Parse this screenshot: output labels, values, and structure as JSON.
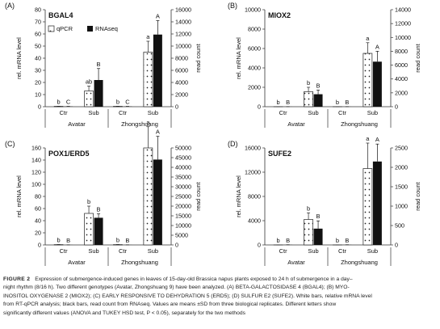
{
  "figure_label": "FIGURE 2",
  "caption_lines": [
    "Expression of submergence-induced genes in leaves of 15-day-old Brassica napus plants exposed to 24 h of submergence in a day–",
    "night rhythm (8/16 h). Two different genotypes (Avatar, Zhongshuang 9) have been analyzed. (A) BETA-GALACTOSIDASE 4 (BGAL4); (B) MYO-",
    "INOSITOL OXYGENASE 2 (MIOX2); (C) EARLY RESPONSIVE TO DEHYDRATION 5 (ERD5); (D) SULFUR E2 (SUFE2). White bars, relative mRNA level",
    "from RT-qPCR analysis; black bars, read count from RNAseq. Values are means ±SD from three biological replicates. Different letters show",
    "significantly different values (ANOVA and TUKEY HSD test, P < 0.05), separately for the two methods"
  ],
  "chart_data": [
    {
      "type": "bar",
      "panel": "(A)",
      "gene": "BGAL4",
      "legend": [
        "qPCR",
        "RNAseq"
      ],
      "ylabel_left": "rel. mRNA level",
      "ylabel_right": "read count",
      "yticks_left": [
        "0",
        "10",
        "20",
        "30",
        "40",
        "50",
        "60",
        "70",
        "80"
      ],
      "yticks_right": [
        "0",
        "2000",
        "4000",
        "6000",
        "8000",
        "10000",
        "12000",
        "14000",
        "16000"
      ],
      "ylim_left": [
        0,
        80
      ],
      "ylim_right": [
        0,
        16000
      ],
      "categories": [
        "Ctr",
        "Sub",
        "Ctr",
        "Sub"
      ],
      "groups": [
        "Avatar",
        "Zhongshuang"
      ],
      "series": [
        {
          "name": "qPCR",
          "values": [
            0.3,
            13,
            0.3,
            45
          ],
          "errors": [
            0.1,
            4,
            0.1,
            9
          ],
          "letters": [
            "b",
            "ab",
            "b",
            "a"
          ]
        },
        {
          "name": "RNAseq",
          "values": [
            40,
            4400,
            40,
            11900
          ],
          "errors": [
            20,
            1900,
            20,
            2300
          ],
          "letters": [
            "C",
            "B",
            "C",
            "A"
          ]
        }
      ]
    },
    {
      "type": "bar",
      "panel": "(B)",
      "gene": "MIOX2",
      "ylabel_left": "rel. mRNA level",
      "ylabel_right": "read count",
      "yticks_left": [
        "0",
        "2000",
        "4000",
        "6000",
        "8000",
        "10000"
      ],
      "yticks_right": [
        "0",
        "2000",
        "4000",
        "6000",
        "8000",
        "10000",
        "12000",
        "14000"
      ],
      "ylim_left": [
        0,
        10000
      ],
      "ylim_right": [
        0,
        14000
      ],
      "categories": [
        "Ctr",
        "Sub",
        "Ctr",
        "Sub"
      ],
      "groups": [
        "Avatar",
        "Zhongshuang"
      ],
      "series": [
        {
          "name": "qPCR",
          "values": [
            5,
            1550,
            5,
            5500
          ],
          "errors": [
            2,
            450,
            2,
            1100
          ],
          "letters": [
            "b",
            "b",
            "b",
            "a"
          ]
        },
        {
          "name": "RNAseq",
          "values": [
            10,
            1800,
            10,
            6500
          ],
          "errors": [
            5,
            600,
            5,
            1500
          ],
          "letters": [
            "B",
            "B",
            "B",
            "A"
          ]
        }
      ]
    },
    {
      "type": "bar",
      "panel": "(C)",
      "gene": "POX1/ERD5",
      "ylabel_left": "rel. mRNA level",
      "ylabel_right": "read count",
      "yticks_left": [
        "0",
        "20",
        "40",
        "60",
        "80",
        "100",
        "120",
        "140",
        "160"
      ],
      "yticks_right": [
        "0",
        "5000",
        "10000",
        "15000",
        "20000",
        "25000",
        "30000",
        "35000",
        "40000",
        "45000",
        "50000"
      ],
      "ylim_left": [
        0,
        160
      ],
      "ylim_right": [
        0,
        50000
      ],
      "categories": [
        "Ctr",
        "Sub",
        "Ctr",
        "Sub"
      ],
      "groups": [
        "Avatar",
        "Zhongshuang"
      ],
      "series": [
        {
          "name": "qPCR",
          "values": [
            0.5,
            52,
            0.5,
            160
          ],
          "errors": [
            0.2,
            12,
            0.2,
            35
          ],
          "letters": [
            "b",
            "b",
            "b",
            "a"
          ]
        },
        {
          "name": "RNAseq",
          "values": [
            40,
            14000,
            40,
            44000
          ],
          "errors": [
            20,
            2000,
            20,
            12000
          ],
          "letters": [
            "B",
            "B",
            "B",
            "A"
          ]
        }
      ]
    },
    {
      "type": "bar",
      "panel": "(D)",
      "gene": "SUFE2",
      "ylabel_left": "rel. mRNA level",
      "ylabel_right": "read count",
      "yticks_left": [
        "0",
        "4000",
        "8000",
        "12000",
        "16000"
      ],
      "yticks_right": [
        "0",
        "500",
        "1000",
        "1500",
        "2000",
        "2500"
      ],
      "ylim_left": [
        0,
        16000
      ],
      "ylim_right": [
        0,
        2500
      ],
      "categories": [
        "Ctr",
        "Sub",
        "Ctr",
        "Sub"
      ],
      "groups": [
        "Avatar",
        "Zhongshuang"
      ],
      "series": [
        {
          "name": "qPCR",
          "values": [
            10,
            4200,
            10,
            12600
          ],
          "errors": [
            5,
            1100,
            5,
            4200
          ],
          "letters": [
            "b",
            "b",
            "b",
            "a"
          ]
        },
        {
          "name": "RNAseq",
          "values": [
            3,
            420,
            3,
            2150
          ],
          "errors": [
            2,
            200,
            2,
            450
          ],
          "letters": [
            "B",
            "B",
            "B",
            "A"
          ]
        }
      ]
    }
  ]
}
